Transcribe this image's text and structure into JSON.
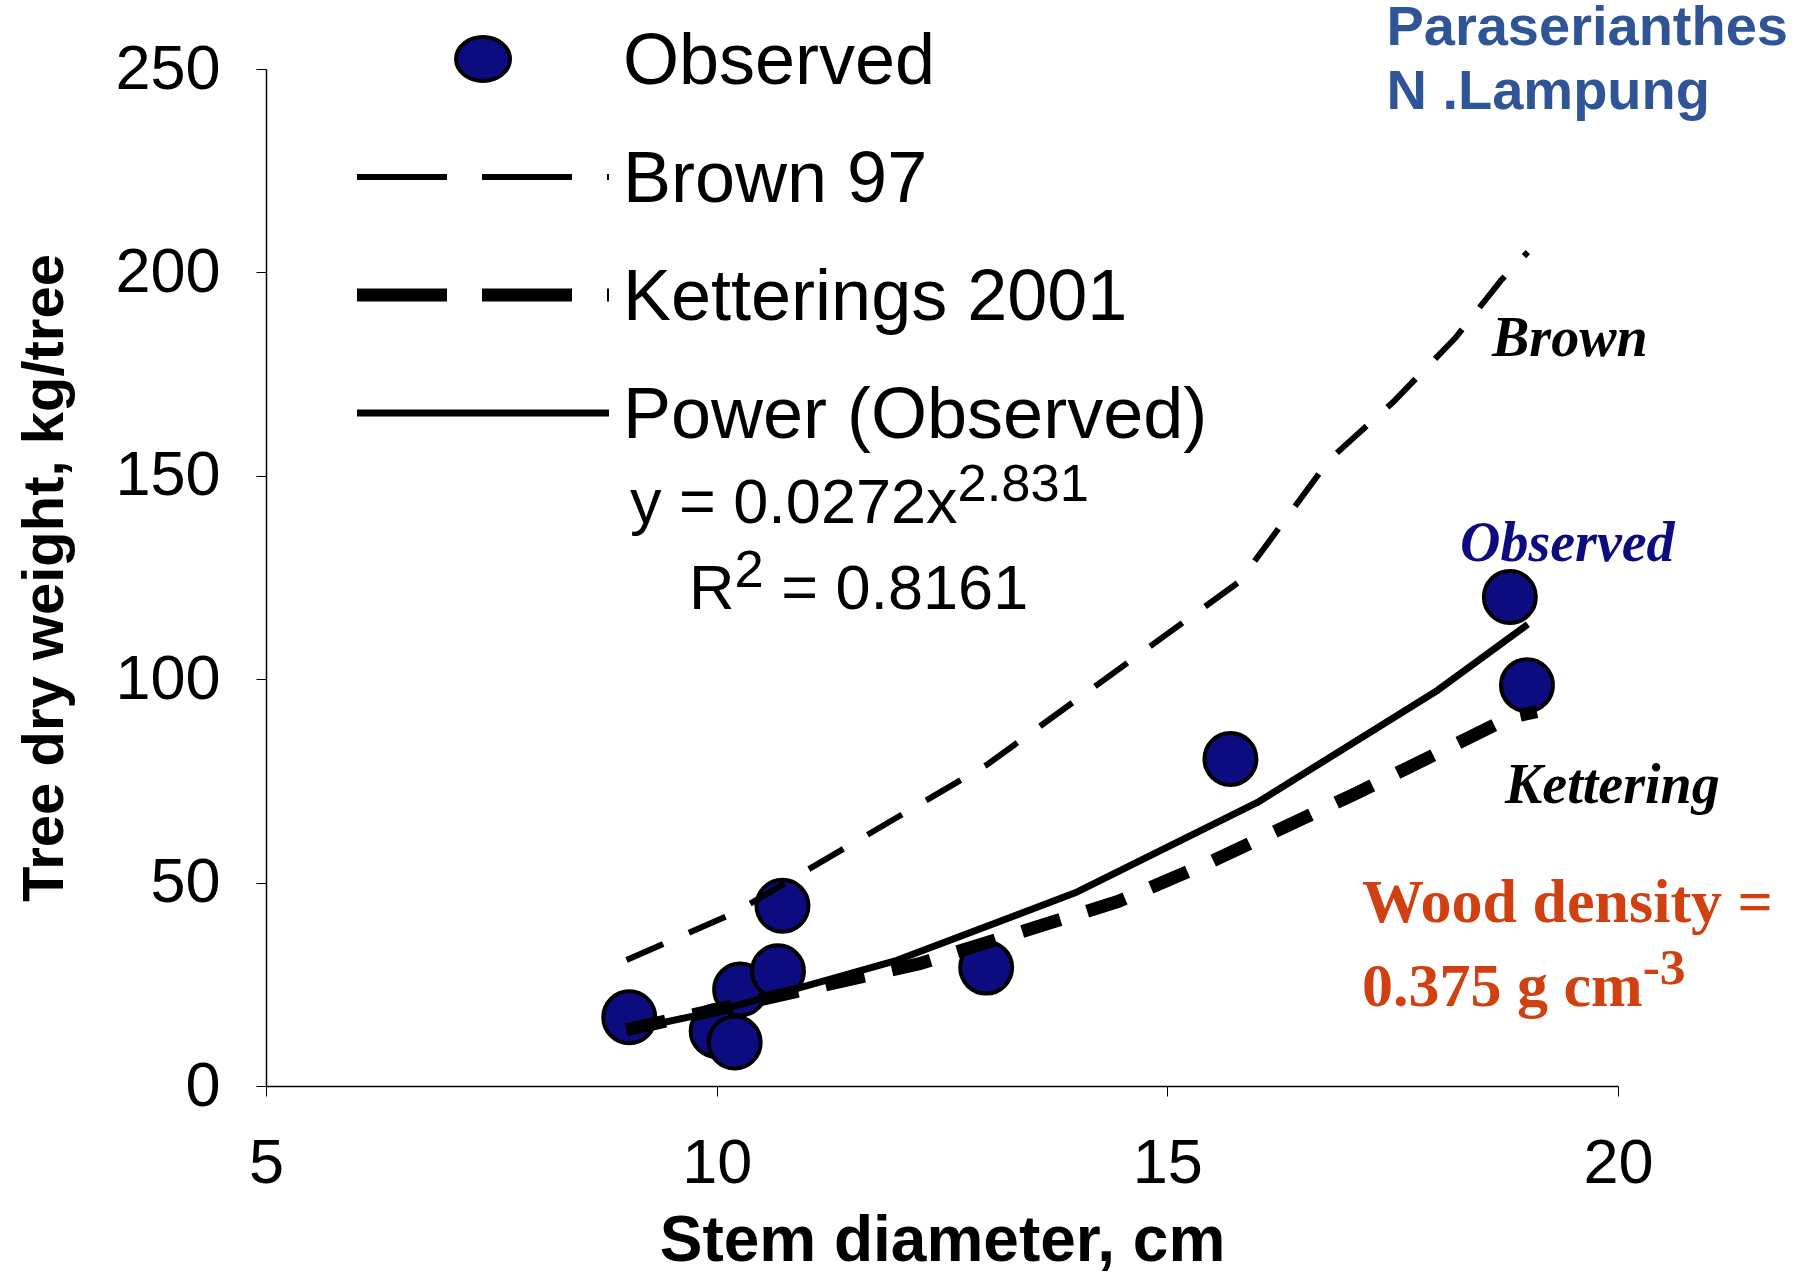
{
  "chart_data": {
    "type": "scatter",
    "title": "Paraserianthes\nN .Lampung",
    "xlabel": "Stem diameter, cm",
    "ylabel": "Tree dry weight, kg/tree",
    "xlim": [
      5,
      20
    ],
    "ylim": [
      0,
      250
    ],
    "xticks": [
      5,
      10,
      15,
      20
    ],
    "yticks": [
      0,
      50,
      100,
      150,
      200,
      250
    ],
    "grid": false,
    "legend": "top left",
    "series": [
      {
        "name": "Observed",
        "type": "scatter",
        "marker": "circle",
        "color": "#0c0c80",
        "x": [
          9.03,
          10.0,
          10.2,
          10.26,
          10.68,
          10.73,
          12.99,
          15.7,
          18.8,
          18.99
        ],
        "values": [
          16.9,
          13.5,
          10.7,
          23.7,
          28.2,
          44.3,
          29.1,
          80.4,
          120.2,
          98.5
        ]
      },
      {
        "name": "Brown 97",
        "type": "line",
        "line_style": "dashed",
        "color": "#000000",
        "x": [
          9,
          10.2,
          13,
          15.8,
          16.8,
          17.5,
          18.2,
          18.7,
          19
        ],
        "values": [
          31,
          42.6,
          79,
          124,
          154,
          168,
          184,
          198,
          205
        ]
      },
      {
        "name": "Ketterings 2001",
        "type": "line",
        "line_style": "dashed",
        "color": "#000000",
        "x": [
          9,
          12.24,
          14.46,
          15.5,
          17.1,
          18.8,
          19.1
        ],
        "values": [
          13.8,
          30,
          45.4,
          55.3,
          72,
          90.6,
          92
        ]
      },
      {
        "name": "Power (Observed)",
        "type": "line",
        "line_style": "solid",
        "color": "#000000",
        "x": [
          9,
          10,
          12,
          14,
          16,
          18,
          19
        ],
        "values": [
          13.7,
          18.4,
          30.9,
          47.7,
          69.7,
          97.3,
          113.5
        ]
      }
    ],
    "annotations": [
      "Brown",
      "Observed",
      "Kettering",
      "y = 0.0272x$^{2.831}$",
      "R$^{2}$ = 0.8161",
      "Wood density = 0.375 g cm$^{-3}$"
    ]
  }
}
